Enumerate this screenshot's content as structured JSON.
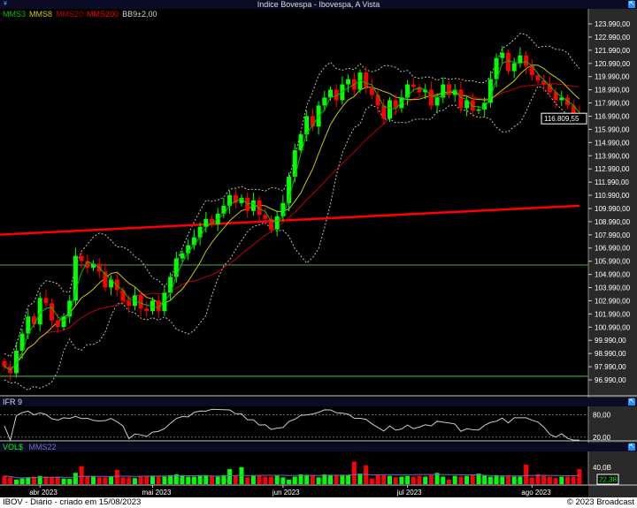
{
  "window": {
    "title": "Indice Bovespa - Ibovespa, A Vista",
    "icon": "expand-icon"
  },
  "legend": [
    {
      "label": "MMS3",
      "color": "#00c000"
    },
    {
      "label": "MMS8",
      "color": "#c8c800"
    },
    {
      "label": "MMS20",
      "color": "#c00000"
    },
    {
      "label": "MMS200",
      "color": "#ff0000"
    },
    {
      "label": "BB9±2,00",
      "color": "#d0d0d0"
    }
  ],
  "footer": {
    "left": "IBOV - Diário - criado em 15/08/2023",
    "right": "© 2023 Broadcast"
  },
  "chart_data": [
    {
      "type": "candlestick",
      "ylim": [
        96490,
        124490
      ],
      "y_ticks": [
        "123.990,00",
        "122.990,00",
        "121.990,00",
        "120.990,00",
        "119.990,00",
        "118.990,00",
        "117.990,00",
        "116.990,00",
        "115.990,00",
        "114.990,00",
        "113.990,00",
        "112.990,00",
        "111.990,00",
        "110.990,00",
        "109.990,00",
        "108.990,00",
        "107.990,00",
        "106.990,00",
        "105.990,00",
        "104.990,00",
        "103.990,00",
        "102.990,00",
        "101.990,00",
        "100.990,00",
        "99.990,00",
        "98.990,00",
        "97.990,00",
        "96.990,00"
      ],
      "last_price": "116.809,55",
      "last_value": 116809.55,
      "close": [
        98000,
        97500,
        99200,
        100500,
        101800,
        101200,
        103200,
        102800,
        101500,
        101000,
        101800,
        103000,
        106400,
        106000,
        105500,
        105800,
        105200,
        104000,
        104600,
        103800,
        103000,
        102600,
        103400,
        102400,
        102200,
        103000,
        102200,
        103600,
        104800,
        106200,
        106600,
        107200,
        107800,
        108600,
        109200,
        108800,
        109600,
        110200,
        111000,
        110400,
        110800,
        109800,
        110600,
        109500,
        109200,
        108400,
        109400,
        110400,
        112400,
        114400,
        115600,
        117000,
        116200,
        117800,
        118400,
        119000,
        118200,
        119400,
        119800,
        119000,
        120300,
        119200,
        118600,
        117800,
        116800,
        118200,
        117600,
        118400,
        119400,
        119200,
        118800,
        119000,
        117800,
        118400,
        119400,
        118600,
        119000,
        117600,
        118200,
        117400,
        117500,
        118000,
        119800,
        121400,
        121800,
        120400,
        121000,
        121600,
        120800,
        120100,
        119700,
        119400,
        118800,
        118200,
        118400,
        117800,
        117200,
        116809.55
      ],
      "mms200": [
        108000,
        110200
      ],
      "horizontal_lines": [
        105705,
        97265
      ],
      "up_color": "#00ff00",
      "down_color": "#ff0000"
    },
    {
      "type": "line",
      "title": "IFR 9",
      "ylim": [
        10,
        100
      ],
      "y_ticks": [
        "80,00",
        "20,00"
      ],
      "reference_levels": [
        80,
        20
      ]
    },
    {
      "type": "bar",
      "title": "VOL$",
      "ma_label": "MMS22",
      "ma_value": "22,38",
      "y_ticks": [
        "40,0B"
      ],
      "unit": "B",
      "values": [
        22,
        18,
        12,
        15,
        18,
        20,
        22,
        20,
        18,
        20,
        15,
        14,
        30,
        48,
        20,
        20,
        18,
        18,
        20,
        38,
        18,
        18,
        16,
        20,
        20,
        22,
        20,
        20,
        24,
        26,
        24,
        20,
        20,
        22,
        24,
        22,
        20,
        24,
        40,
        22,
        45,
        18,
        22,
        22,
        20,
        20,
        22,
        18,
        12,
        20,
        26,
        25,
        24,
        18,
        26,
        25,
        25,
        25,
        25,
        60,
        28,
        50,
        15,
        25,
        24,
        22,
        18,
        20,
        22,
        20,
        22,
        20,
        24,
        30,
        20,
        12,
        22,
        20,
        22,
        24,
        28,
        24,
        20,
        24,
        20,
        22,
        20,
        20,
        52,
        18,
        26,
        22,
        20,
        16,
        20,
        20,
        20,
        40
      ],
      "xticks": [
        "abr 2023",
        "mai 2023",
        "jun 2023",
        "jul 2023",
        "ago 2023"
      ],
      "xtick_index": [
        6,
        25,
        47,
        68,
        89
      ]
    }
  ]
}
